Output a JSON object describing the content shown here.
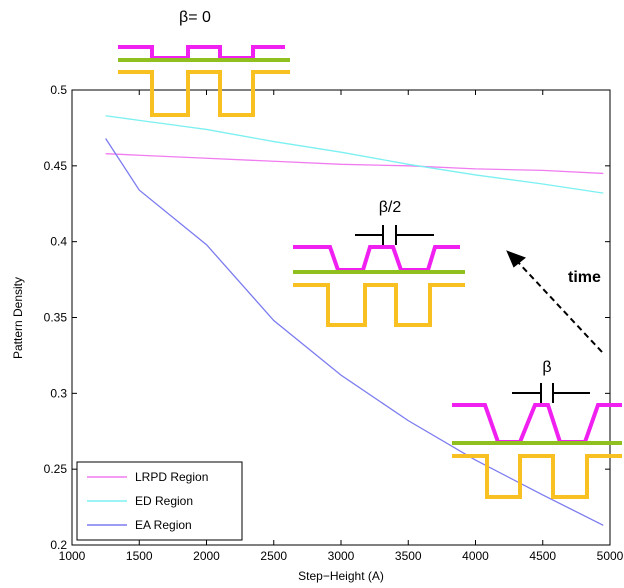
{
  "chart_data": {
    "type": "line",
    "x_label": "Step−Height (A)",
    "y_label": "Pattern Density",
    "x": [
      1250,
      1500,
      2000,
      2500,
      3000,
      3500,
      4000,
      4500,
      4950
    ],
    "series": [
      {
        "name": "LRPD Region",
        "color": "#f07cf0",
        "values": [
          0.458,
          0.457,
          0.455,
          0.453,
          0.451,
          0.45,
          0.448,
          0.447,
          0.445
        ]
      },
      {
        "name": "ED Region",
        "color": "#7cf0f0",
        "values": [
          0.483,
          0.48,
          0.474,
          0.466,
          0.459,
          0.451,
          0.444,
          0.438,
          0.432
        ]
      },
      {
        "name": "EA Region",
        "color": "#7c7cf0",
        "values": [
          0.468,
          0.434,
          0.398,
          0.348,
          0.312,
          0.282,
          0.256,
          0.233,
          0.213
        ]
      }
    ],
    "xlim": [
      1000,
      5000
    ],
    "xticks": [
      1000,
      1500,
      2000,
      2500,
      3000,
      3500,
      4000,
      4500,
      5000
    ],
    "ylim": [
      0.2,
      0.5
    ],
    "yticks": [
      0.2,
      0.25,
      0.3,
      0.35,
      0.4,
      0.45,
      0.5
    ],
    "legend": "lower left",
    "annotations": [
      "β= 0",
      "β/2",
      "β",
      "time"
    ]
  }
}
